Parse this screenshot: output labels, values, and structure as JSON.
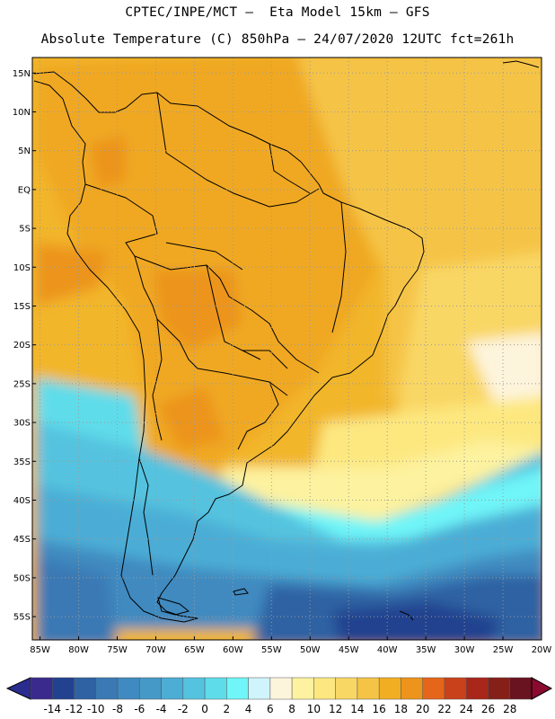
{
  "header": {
    "line1": "CPTEC/INPE/MCT –  Eta Model 15km – GFS",
    "line2": "Absolute Temperature (C) 850hPa – 24/07/2020 12UTC fct=261h"
  },
  "map": {
    "region": "South America",
    "lat_labels": [
      "15N",
      "10N",
      "5N",
      "EQ",
      "5S",
      "10S",
      "15S",
      "20S",
      "25S",
      "30S",
      "35S",
      "40S",
      "45S",
      "50S",
      "55S"
    ],
    "lat_values": [
      15,
      10,
      5,
      0,
      -5,
      -10,
      -15,
      -20,
      -25,
      -30,
      -35,
      -40,
      -45,
      -50,
      -55
    ],
    "lon_labels": [
      "85W",
      "80W",
      "75W",
      "70W",
      "65W",
      "60W",
      "55W",
      "50W",
      "45W",
      "40W",
      "35W",
      "30W",
      "25W",
      "20W"
    ],
    "lon_values": [
      -85,
      -80,
      -75,
      -70,
      -65,
      -60,
      -55,
      -50,
      -45,
      -40,
      -35,
      -30,
      -25,
      -20
    ],
    "lat_range": [
      -58,
      17
    ],
    "lon_range": [
      -86,
      -20
    ]
  },
  "colorbar": {
    "ticks": [
      "-14",
      "-12",
      "-10",
      "-8",
      "-6",
      "-4",
      "-2",
      "0",
      "2",
      "4",
      "6",
      "8",
      "10",
      "12",
      "14",
      "16",
      "18",
      "20",
      "22",
      "24",
      "26",
      "28"
    ],
    "colors": [
      "#3a2a8c",
      "#22428f",
      "#2f62a3",
      "#3a79b4",
      "#3f8ac0",
      "#4599c6",
      "#4cadd5",
      "#55c3df",
      "#5fdcea",
      "#70f5f8",
      "#cff4fb",
      "#fdf4dc",
      "#fdf29f",
      "#fde880",
      "#f9d765",
      "#f5c446",
      "#f2ae23",
      "#ec941b",
      "#e5661a",
      "#c9411b",
      "#a8261a",
      "#852019",
      "#6a1320"
    ],
    "over_color": "#8a0a30",
    "under_color": "#2a2c8e"
  }
}
